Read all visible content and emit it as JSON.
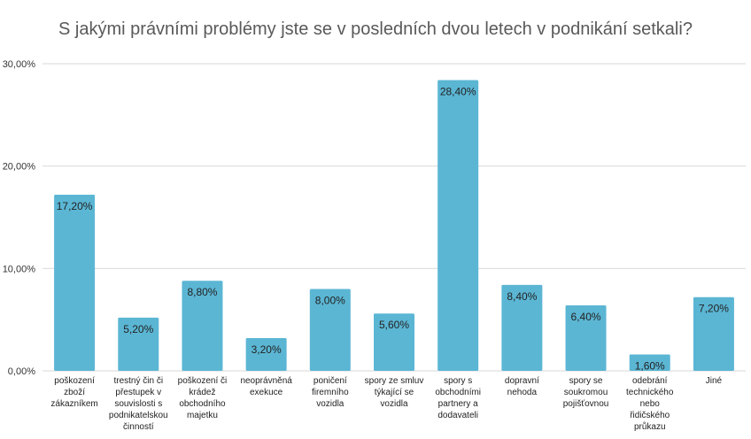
{
  "chart_data": {
    "type": "bar",
    "title": "S jakými právními problémy jste se v posledních dvou letech v podnikání setkali?",
    "xlabel": "",
    "ylabel": "",
    "ylim": [
      0,
      30
    ],
    "yticks": [
      0,
      10,
      20,
      30
    ],
    "ytick_labels": [
      "0,00%",
      "10,00%",
      "20,00%",
      "30,00%"
    ],
    "grid": true,
    "legend": "none",
    "bar_color": "#5bb6d4",
    "grid_color": "#d9d9d9",
    "categories": [
      "poškození zboží zákazníkem",
      "trestný čin či přestupek v souvislosti s podnikatelskou činností",
      "poškození či krádež obchodního majetku",
      "neoprávněná exekuce",
      "poničení firemního vozidla",
      "spory ze smluv týkající se vozidla",
      "spory s obchodními partnery a dodavateli",
      "dopravní nehoda",
      "spory se soukromou pojišťovnou",
      "odebrání technického nebo řidičského průkazu",
      "Jiné"
    ],
    "category_lines": [
      [
        "poškození",
        "zboží",
        "zákazníkem"
      ],
      [
        "trestný čin či",
        "přestupek v",
        "souvislosti s",
        "podnikatelskou",
        "činností"
      ],
      [
        "poškození či",
        "krádež",
        "obchodního",
        "majetku"
      ],
      [
        "neoprávněná",
        "exekuce"
      ],
      [
        "poničení",
        "firemního",
        "vozidla"
      ],
      [
        "spory ze smluv",
        "týkající se",
        "vozidla"
      ],
      [
        "spory s",
        "obchodními",
        "partnery a",
        "dodavateli"
      ],
      [
        "dopravní",
        "nehoda"
      ],
      [
        "spory se",
        "soukromou",
        "pojišťovnou"
      ],
      [
        "odebrání",
        "technického",
        "nebo",
        "řidičského",
        "průkazu"
      ],
      [
        "Jiné"
      ]
    ],
    "values": [
      17.2,
      5.2,
      8.8,
      3.2,
      8.0,
      5.6,
      28.4,
      8.4,
      6.4,
      1.6,
      7.2
    ],
    "value_labels": [
      "17,20%",
      "5,20%",
      "8,80%",
      "3,20%",
      "8,00%",
      "5,60%",
      "28,40%",
      "8,40%",
      "6,40%",
      "1,60%",
      "7,20%"
    ]
  }
}
